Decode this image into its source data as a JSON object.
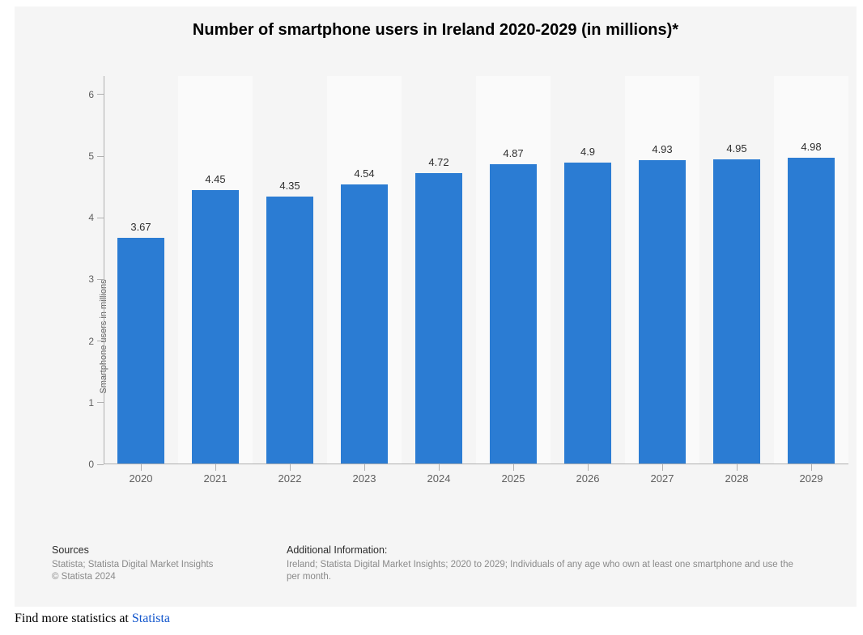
{
  "chart": {
    "type": "bar",
    "title": "Number of smartphone users in Ireland 2020-2029 (in millions)*",
    "title_fontsize": 20,
    "y_axis_title": "Smartphone users in millions",
    "categories": [
      "2020",
      "2021",
      "2022",
      "2023",
      "2024",
      "2025",
      "2026",
      "2027",
      "2028",
      "2029"
    ],
    "values": [
      3.67,
      4.45,
      4.35,
      4.54,
      4.72,
      4.87,
      4.9,
      4.93,
      4.95,
      4.98
    ],
    "value_labels": [
      "3.67",
      "4.45",
      "4.35",
      "4.54",
      "4.72",
      "4.87",
      "4.9",
      "4.93",
      "4.95",
      "4.98"
    ],
    "bar_color": "#2b7cd3",
    "ylim": [
      0,
      6.3
    ],
    "yticks": [
      0,
      1,
      2,
      3,
      4,
      5,
      6
    ],
    "ytick_labels": [
      "0",
      "1",
      "2",
      "3",
      "4",
      "5",
      "6"
    ],
    "background_color": "#f5f5f5",
    "alt_band_color": "#fafafa",
    "axis_color": "#b0b0b0",
    "tick_label_color": "#5f5f5f",
    "value_label_fontsize": 13,
    "axis_label_fontsize": 11,
    "bar_width_ratio": 0.64
  },
  "footer": {
    "sources_heading": "Sources",
    "sources_line1": "Statista; Statista Digital Market Insights",
    "sources_line2": "© Statista 2024",
    "info_heading": "Additional Information:",
    "info_line1": "Ireland; Statista Digital Market Insights; 2020 to 2029; Individuals of any age who own at least one smartphone and use the",
    "info_line2": "per month."
  },
  "below": {
    "prefix": "Find more statistics at ",
    "link_text": "Statista"
  }
}
